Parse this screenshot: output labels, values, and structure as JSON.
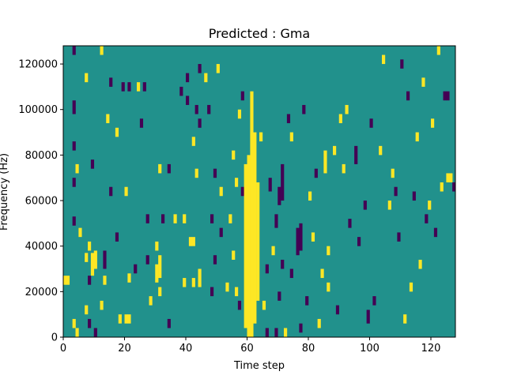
{
  "chart_data": {
    "type": "heatmap",
    "title": "Predicted : Gma",
    "xlabel": "Time step",
    "ylabel": "Frequency (Hz)",
    "xlim": [
      0,
      128
    ],
    "ylim": [
      0,
      128000
    ],
    "x_ticks": [
      0,
      20,
      40,
      60,
      80,
      100,
      120
    ],
    "y_ticks": [
      0,
      20000,
      40000,
      60000,
      80000,
      100000,
      120000
    ],
    "x_tick_labels": [
      "0",
      "20",
      "40",
      "60",
      "80",
      "100",
      "120"
    ],
    "y_tick_labels": [
      "0",
      "20000",
      "40000",
      "60000",
      "80000",
      "100000",
      "120000"
    ],
    "grid": false,
    "colormap": "viridis",
    "value_range": [
      -1,
      1
    ],
    "background_value": 0,
    "colors": {
      "low": "#440154",
      "mid": "#21918c",
      "high": "#fde725"
    },
    "columns": 128,
    "rows": 128,
    "cells": [
      {
        "t": 0,
        "f0": 23000,
        "f1": 27000,
        "v": 1
      },
      {
        "t": 1,
        "f0": 23000,
        "f1": 27000,
        "v": 1
      },
      {
        "t": 3,
        "f0": 124000,
        "f1": 128000,
        "v": -1
      },
      {
        "t": 3,
        "f0": 98000,
        "f1": 104000,
        "v": -1
      },
      {
        "t": 3,
        "f0": 82000,
        "f1": 86000,
        "v": -1
      },
      {
        "t": 3,
        "f0": 66000,
        "f1": 70000,
        "v": -1
      },
      {
        "t": 3,
        "f0": 49000,
        "f1": 53000,
        "v": -1
      },
      {
        "t": 3,
        "f0": 4000,
        "f1": 8000,
        "v": 1
      },
      {
        "t": 4,
        "f0": 72000,
        "f1": 76000,
        "v": 1
      },
      {
        "t": 4,
        "f0": 0,
        "f1": 4000,
        "v": 1
      },
      {
        "t": 5,
        "f0": 44000,
        "f1": 48000,
        "v": 1
      },
      {
        "t": 7,
        "f0": 112000,
        "f1": 116000,
        "v": 1
      },
      {
        "t": 7,
        "f0": 33000,
        "f1": 37000,
        "v": 1
      },
      {
        "t": 7,
        "f0": 10000,
        "f1": 14000,
        "v": 1
      },
      {
        "t": 8,
        "f0": 38000,
        "f1": 42000,
        "v": 1
      },
      {
        "t": 8,
        "f0": 23000,
        "f1": 27000,
        "v": -1
      },
      {
        "t": 8,
        "f0": 4000,
        "f1": 8000,
        "v": -1
      },
      {
        "t": 9,
        "f0": 74000,
        "f1": 78000,
        "v": -1
      },
      {
        "t": 9,
        "f0": 27000,
        "f1": 37000,
        "v": 1
      },
      {
        "t": 10,
        "f0": 30000,
        "f1": 38000,
        "v": 1
      },
      {
        "t": 10,
        "f0": 0,
        "f1": 4000,
        "v": -1
      },
      {
        "t": 12,
        "f0": 124000,
        "f1": 128000,
        "v": 1
      },
      {
        "t": 12,
        "f0": 12000,
        "f1": 16000,
        "v": 1
      },
      {
        "t": 13,
        "f0": 30000,
        "f1": 38000,
        "v": -1
      },
      {
        "t": 13,
        "f0": 23000,
        "f1": 27000,
        "v": 1
      },
      {
        "t": 14,
        "f0": 94000,
        "f1": 98000,
        "v": 1
      },
      {
        "t": 15,
        "f0": 110000,
        "f1": 114000,
        "v": -1
      },
      {
        "t": 15,
        "f0": 62000,
        "f1": 66000,
        "v": -1
      },
      {
        "t": 17,
        "f0": 88000,
        "f1": 92000,
        "v": 1
      },
      {
        "t": 17,
        "f0": 42000,
        "f1": 46000,
        "v": -1
      },
      {
        "t": 18,
        "f0": 6000,
        "f1": 10000,
        "v": 1
      },
      {
        "t": 19,
        "f0": 108000,
        "f1": 112000,
        "v": -1
      },
      {
        "t": 20,
        "f0": 62000,
        "f1": 66000,
        "v": 1
      },
      {
        "t": 20,
        "f0": 6000,
        "f1": 10000,
        "v": 1
      },
      {
        "t": 21,
        "f0": 108000,
        "f1": 112000,
        "v": -1
      },
      {
        "t": 21,
        "f0": 24000,
        "f1": 28000,
        "v": 1
      },
      {
        "t": 21,
        "f0": 6000,
        "f1": 10000,
        "v": 1
      },
      {
        "t": 23,
        "f0": 28000,
        "f1": 32000,
        "v": -1
      },
      {
        "t": 24,
        "f0": 108000,
        "f1": 112000,
        "v": 1
      },
      {
        "t": 25,
        "f0": 92000,
        "f1": 96000,
        "v": -1
      },
      {
        "t": 26,
        "f0": 108000,
        "f1": 112000,
        "v": -1
      },
      {
        "t": 27,
        "f0": 50000,
        "f1": 54000,
        "v": -1
      },
      {
        "t": 27,
        "f0": 32000,
        "f1": 36000,
        "v": -1
      },
      {
        "t": 28,
        "f0": 14000,
        "f1": 18000,
        "v": 1
      },
      {
        "t": 30,
        "f0": 24000,
        "f1": 32000,
        "v": 1
      },
      {
        "t": 30,
        "f0": 38000,
        "f1": 42000,
        "v": 1
      },
      {
        "t": 31,
        "f0": 72000,
        "f1": 76000,
        "v": 1
      },
      {
        "t": 31,
        "f0": 26000,
        "f1": 36000,
        "v": 1
      },
      {
        "t": 31,
        "f0": 18000,
        "f1": 22000,
        "v": 1
      },
      {
        "t": 32,
        "f0": 50000,
        "f1": 54000,
        "v": -1
      },
      {
        "t": 34,
        "f0": 72000,
        "f1": 76000,
        "v": -1
      },
      {
        "t": 34,
        "f0": 4000,
        "f1": 8000,
        "v": -1
      },
      {
        "t": 36,
        "f0": 50000,
        "f1": 54000,
        "v": 1
      },
      {
        "t": 38,
        "f0": 106000,
        "f1": 110000,
        "v": -1
      },
      {
        "t": 39,
        "f0": 50000,
        "f1": 54000,
        "v": 1
      },
      {
        "t": 39,
        "f0": 22000,
        "f1": 26000,
        "v": 1
      },
      {
        "t": 40,
        "f0": 112000,
        "f1": 116000,
        "v": -1
      },
      {
        "t": 40,
        "f0": 102000,
        "f1": 106000,
        "v": -1
      },
      {
        "t": 41,
        "f0": 40000,
        "f1": 44000,
        "v": 1
      },
      {
        "t": 42,
        "f0": 40000,
        "f1": 44000,
        "v": 1
      },
      {
        "t": 42,
        "f0": 22000,
        "f1": 26000,
        "v": 1
      },
      {
        "t": 42,
        "f0": 84000,
        "f1": 88000,
        "v": 1
      },
      {
        "t": 43,
        "f0": 70000,
        "f1": 74000,
        "v": 1
      },
      {
        "t": 43,
        "f0": 98000,
        "f1": 102000,
        "v": -1
      },
      {
        "t": 44,
        "f0": 116000,
        "f1": 120000,
        "v": -1
      },
      {
        "t": 44,
        "f0": 92000,
        "f1": 96000,
        "v": -1
      },
      {
        "t": 44,
        "f0": 22000,
        "f1": 30000,
        "v": 1
      },
      {
        "t": 46,
        "f0": 112000,
        "f1": 116000,
        "v": 1
      },
      {
        "t": 47,
        "f0": 98000,
        "f1": 102000,
        "v": -1
      },
      {
        "t": 48,
        "f0": 50000,
        "f1": 54000,
        "v": -1
      },
      {
        "t": 48,
        "f0": 18000,
        "f1": 22000,
        "v": -1
      },
      {
        "t": 49,
        "f0": 70000,
        "f1": 74000,
        "v": -1
      },
      {
        "t": 49,
        "f0": 32000,
        "f1": 36000,
        "v": -1
      },
      {
        "t": 50,
        "f0": 116000,
        "f1": 120000,
        "v": 1
      },
      {
        "t": 51,
        "f0": 62000,
        "f1": 66000,
        "v": 1
      },
      {
        "t": 51,
        "f0": 44000,
        "f1": 48000,
        "v": -1
      },
      {
        "t": 53,
        "f0": 20000,
        "f1": 24000,
        "v": 1
      },
      {
        "t": 54,
        "f0": 50000,
        "f1": 54000,
        "v": 1
      },
      {
        "t": 55,
        "f0": 78000,
        "f1": 82000,
        "v": 1
      },
      {
        "t": 55,
        "f0": 34000,
        "f1": 38000,
        "v": 1
      },
      {
        "t": 56,
        "f0": 66000,
        "f1": 70000,
        "v": 1
      },
      {
        "t": 56,
        "f0": 18000,
        "f1": 22000,
        "v": 1
      },
      {
        "t": 57,
        "f0": 96000,
        "f1": 100000,
        "v": 1
      },
      {
        "t": 57,
        "f0": 12000,
        "f1": 16000,
        "v": -1
      },
      {
        "t": 58,
        "f0": 104000,
        "f1": 108000,
        "v": -1
      },
      {
        "t": 58,
        "f0": 62000,
        "f1": 66000,
        "v": -1
      },
      {
        "t": 59,
        "f0": 4000,
        "f1": 76000,
        "v": 1
      },
      {
        "t": 60,
        "f0": 0,
        "f1": 80000,
        "v": 1
      },
      {
        "t": 61,
        "f0": 0,
        "f1": 108000,
        "v": 1
      },
      {
        "t": 62,
        "f0": 6000,
        "f1": 90000,
        "v": 1
      },
      {
        "t": 63,
        "f0": 16000,
        "f1": 68000,
        "v": 1
      },
      {
        "t": 64,
        "f0": 86000,
        "f1": 90000,
        "v": 1
      },
      {
        "t": 65,
        "f0": 12000,
        "f1": 16000,
        "v": 1
      },
      {
        "t": 66,
        "f0": 28000,
        "f1": 32000,
        "v": -1
      },
      {
        "t": 66,
        "f0": 0,
        "f1": 4000,
        "v": -1
      },
      {
        "t": 67,
        "f0": 64000,
        "f1": 70000,
        "v": -1
      },
      {
        "t": 68,
        "f0": 36000,
        "f1": 40000,
        "v": 1
      },
      {
        "t": 69,
        "f0": 48000,
        "f1": 54000,
        "v": -1
      },
      {
        "t": 69,
        "f0": 0,
        "f1": 4000,
        "v": -1
      },
      {
        "t": 70,
        "f0": 58000,
        "f1": 66000,
        "v": -1
      },
      {
        "t": 70,
        "f0": 16000,
        "f1": 20000,
        "v": -1
      },
      {
        "t": 71,
        "f0": 60000,
        "f1": 76000,
        "v": -1
      },
      {
        "t": 71,
        "f0": 30000,
        "f1": 34000,
        "v": -1
      },
      {
        "t": 72,
        "f0": 0,
        "f1": 4000,
        "v": 1
      },
      {
        "t": 73,
        "f0": 94000,
        "f1": 98000,
        "v": -1
      },
      {
        "t": 74,
        "f0": 86000,
        "f1": 90000,
        "v": 1
      },
      {
        "t": 74,
        "f0": 26000,
        "f1": 30000,
        "v": -1
      },
      {
        "t": 76,
        "f0": 36000,
        "f1": 48000,
        "v": -1
      },
      {
        "t": 77,
        "f0": 38000,
        "f1": 50000,
        "v": -1
      },
      {
        "t": 77,
        "f0": 2000,
        "f1": 6000,
        "v": -1
      },
      {
        "t": 78,
        "f0": 98000,
        "f1": 102000,
        "v": -1
      },
      {
        "t": 79,
        "f0": 14000,
        "f1": 18000,
        "v": -1
      },
      {
        "t": 80,
        "f0": 60000,
        "f1": 64000,
        "v": 1
      },
      {
        "t": 81,
        "f0": 42000,
        "f1": 46000,
        "v": 1
      },
      {
        "t": 82,
        "f0": 70000,
        "f1": 74000,
        "v": -1
      },
      {
        "t": 83,
        "f0": 4000,
        "f1": 8000,
        "v": 1
      },
      {
        "t": 84,
        "f0": 26000,
        "f1": 30000,
        "v": 1
      },
      {
        "t": 85,
        "f0": 72000,
        "f1": 82000,
        "v": 1
      },
      {
        "t": 86,
        "f0": 36000,
        "f1": 40000,
        "v": 1
      },
      {
        "t": 86,
        "f0": 20000,
        "f1": 24000,
        "v": 1
      },
      {
        "t": 88,
        "f0": 80000,
        "f1": 84000,
        "v": 1
      },
      {
        "t": 89,
        "f0": 10000,
        "f1": 14000,
        "v": -1
      },
      {
        "t": 90,
        "f0": 94000,
        "f1": 98000,
        "v": 1
      },
      {
        "t": 91,
        "f0": 72000,
        "f1": 76000,
        "v": 1
      },
      {
        "t": 92,
        "f0": 98000,
        "f1": 102000,
        "v": 1
      },
      {
        "t": 93,
        "f0": 48000,
        "f1": 52000,
        "v": -1
      },
      {
        "t": 95,
        "f0": 76000,
        "f1": 84000,
        "v": -1
      },
      {
        "t": 96,
        "f0": 40000,
        "f1": 44000,
        "v": -1
      },
      {
        "t": 98,
        "f0": 56000,
        "f1": 60000,
        "v": -1
      },
      {
        "t": 99,
        "f0": 6000,
        "f1": 12000,
        "v": -1
      },
      {
        "t": 100,
        "f0": 92000,
        "f1": 96000,
        "v": -1
      },
      {
        "t": 101,
        "f0": 14000,
        "f1": 18000,
        "v": -1
      },
      {
        "t": 103,
        "f0": 80000,
        "f1": 84000,
        "v": 1
      },
      {
        "t": 104,
        "f0": 120000,
        "f1": 124000,
        "v": 1
      },
      {
        "t": 106,
        "f0": 56000,
        "f1": 60000,
        "v": 1
      },
      {
        "t": 107,
        "f0": 70000,
        "f1": 74000,
        "v": 1
      },
      {
        "t": 108,
        "f0": 62000,
        "f1": 66000,
        "v": -1
      },
      {
        "t": 109,
        "f0": 42000,
        "f1": 46000,
        "v": -1
      },
      {
        "t": 110,
        "f0": 118000,
        "f1": 122000,
        "v": -1
      },
      {
        "t": 111,
        "f0": 6000,
        "f1": 10000,
        "v": 1
      },
      {
        "t": 112,
        "f0": 104000,
        "f1": 108000,
        "v": -1
      },
      {
        "t": 113,
        "f0": 20000,
        "f1": 24000,
        "v": 1
      },
      {
        "t": 114,
        "f0": 60000,
        "f1": 64000,
        "v": -1
      },
      {
        "t": 115,
        "f0": 86000,
        "f1": 90000,
        "v": 1
      },
      {
        "t": 116,
        "f0": 30000,
        "f1": 34000,
        "v": 1
      },
      {
        "t": 117,
        "f0": 110000,
        "f1": 114000,
        "v": 1
      },
      {
        "t": 118,
        "f0": 50000,
        "f1": 54000,
        "v": -1
      },
      {
        "t": 119,
        "f0": 56000,
        "f1": 60000,
        "v": 1
      },
      {
        "t": 120,
        "f0": 92000,
        "f1": 96000,
        "v": 1
      },
      {
        "t": 121,
        "f0": 44000,
        "f1": 48000,
        "v": -1
      },
      {
        "t": 122,
        "f0": 124000,
        "f1": 128000,
        "v": 1
      },
      {
        "t": 123,
        "f0": 64000,
        "f1": 68000,
        "v": 1
      },
      {
        "t": 124,
        "f0": 104000,
        "f1": 108000,
        "v": -1
      },
      {
        "t": 125,
        "f0": 104000,
        "f1": 108000,
        "v": -1
      },
      {
        "t": 125,
        "f0": 68000,
        "f1": 72000,
        "v": 1
      },
      {
        "t": 126,
        "f0": 68000,
        "f1": 72000,
        "v": 1
      },
      {
        "t": 127,
        "f0": 64000,
        "f1": 68000,
        "v": -1
      }
    ]
  }
}
